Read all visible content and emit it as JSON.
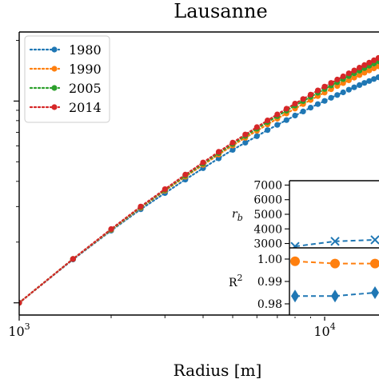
{
  "chart_data": [
    {
      "type": "line",
      "title": "Lausanne",
      "xlabel": "Radius [m]",
      "ylabel": "",
      "xscale": "log",
      "yscale": "log",
      "xlim": [
        1000,
        16000
      ],
      "x_tick_labels": [
        {
          "value": 1000,
          "base": "10",
          "exp": "3"
        },
        {
          "value": 10000,
          "base": "10",
          "exp": "4"
        }
      ],
      "legend": {
        "position": "top-left"
      },
      "grid": false,
      "series": [
        {
          "name": "1980",
          "color": "#1f77b4",
          "linestyle": "dotted",
          "x": [
            1000,
            1500,
            2000,
            2500,
            3000,
            3500,
            4000,
            4500,
            5000,
            5500,
            6000,
            6500,
            7000,
            7500,
            8000,
            8500,
            9000,
            9500,
            10000,
            10500,
            11000,
            11500,
            12000,
            12500,
            13000,
            13500,
            14000,
            14500,
            15000
          ],
          "y": [
            1.0,
            1.64,
            2.28,
            2.91,
            3.5,
            4.08,
            4.65,
            5.2,
            5.73,
            6.22,
            6.7,
            7.18,
            7.62,
            8.05,
            8.48,
            8.88,
            9.28,
            9.66,
            10.02,
            10.38,
            10.72,
            11.05,
            11.38,
            11.7,
            12.0,
            12.3,
            12.58,
            12.86,
            13.13
          ]
        },
        {
          "name": "1990",
          "color": "#ff7f0e",
          "linestyle": "dotted",
          "x": [
            1000,
            1500,
            2000,
            2500,
            3000,
            3500,
            4000,
            4500,
            5000,
            5500,
            6000,
            6500,
            7000,
            7500,
            8000,
            8500,
            9000,
            9500,
            10000,
            10500,
            11000,
            11500,
            12000,
            12500,
            13000,
            13500,
            14000,
            14500,
            15000
          ],
          "y": [
            1.0,
            1.65,
            2.3,
            2.96,
            3.6,
            4.22,
            4.83,
            5.43,
            6.02,
            6.58,
            7.12,
            7.66,
            8.18,
            8.68,
            9.18,
            9.66,
            10.12,
            10.58,
            11.02,
            11.45,
            11.87,
            12.28,
            12.68,
            13.07,
            13.45,
            13.82,
            14.18,
            14.53,
            14.88
          ]
        },
        {
          "name": "2005",
          "color": "#2ca02c",
          "linestyle": "dotted",
          "x": [
            1000,
            1500,
            2000,
            2500,
            3000,
            3500,
            4000,
            4500,
            5000,
            5500,
            6000,
            6500,
            7000,
            7500,
            8000,
            8500,
            9000,
            9500,
            10000,
            10500,
            11000,
            11500,
            12000,
            12500,
            13000,
            13500,
            14000,
            14500,
            15000
          ],
          "y": [
            1.0,
            1.65,
            2.31,
            2.98,
            3.63,
            4.27,
            4.9,
            5.52,
            6.13,
            6.72,
            7.3,
            7.87,
            8.42,
            8.96,
            9.5,
            10.0,
            10.5,
            11.0,
            11.48,
            11.95,
            12.4,
            12.85,
            13.3,
            13.73,
            14.15,
            14.56,
            14.97,
            15.36,
            15.75
          ]
        },
        {
          "name": "2014",
          "color": "#d62728",
          "linestyle": "dotted",
          "x": [
            1000,
            1500,
            2000,
            2500,
            3000,
            3500,
            4000,
            4500,
            5000,
            5500,
            6000,
            6500,
            7000,
            7500,
            8000,
            8500,
            9000,
            9500,
            10000,
            10500,
            11000,
            11500,
            12000,
            12500,
            13000,
            13500,
            14000,
            14500,
            15000
          ],
          "y": [
            1.0,
            1.65,
            2.32,
            3.0,
            3.66,
            4.32,
            4.96,
            5.6,
            6.22,
            6.83,
            7.43,
            8.02,
            8.59,
            9.16,
            9.71,
            10.24,
            10.77,
            11.29,
            11.8,
            12.3,
            12.78,
            13.26,
            13.73,
            14.19,
            14.64,
            15.08,
            15.51,
            15.93,
            16.35
          ]
        }
      ]
    },
    {
      "type": "line",
      "panel": "inset-top",
      "ylabel_base": "r",
      "ylabel_sub": "b",
      "ylim": [
        2700,
        7300
      ],
      "y_ticks": [
        3000,
        4000,
        5000,
        6000,
        7000
      ],
      "series": [
        {
          "name": "",
          "color": "#1f77b4",
          "marker": "x",
          "linestyle": "dashed",
          "x": [
            1,
            2,
            3
          ],
          "y": [
            2800,
            3150,
            3250
          ]
        }
      ]
    },
    {
      "type": "line",
      "panel": "inset-bottom",
      "ylabel_base": "R",
      "ylabel_sup": "2",
      "ylim": [
        0.975,
        1.005
      ],
      "y_ticks": [
        0.98,
        0.99,
        1.0
      ],
      "y_tick_labels": [
        "0.98",
        "0.99",
        "1.00"
      ],
      "series": [
        {
          "name": "",
          "color": "#ff7f0e",
          "marker": "circle",
          "linestyle": "dashed",
          "x": [
            1,
            2,
            3
          ],
          "y": [
            0.999,
            0.998,
            0.998
          ]
        },
        {
          "name": "",
          "color": "#1f77b4",
          "marker": "diamond",
          "linestyle": "dashed",
          "x": [
            1,
            2,
            3
          ],
          "y": [
            0.9835,
            0.9835,
            0.985
          ]
        }
      ]
    }
  ]
}
